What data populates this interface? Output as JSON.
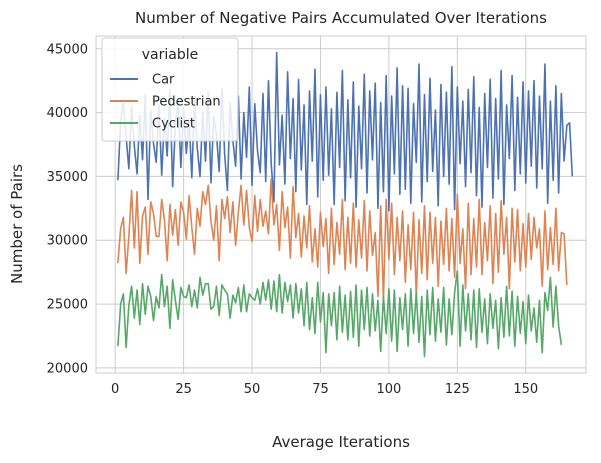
{
  "chart_data": {
    "type": "line",
    "title": "Number of Negative Pairs Accumulated Over Iterations",
    "xlabel": "Average Iterations",
    "ylabel": "Number of Pairs",
    "xlim": [
      -7,
      172
    ],
    "ylim": [
      19600,
      46000
    ],
    "xticks": [
      0,
      25,
      50,
      75,
      100,
      125,
      150
    ],
    "yticks": [
      20000,
      25000,
      30000,
      35000,
      40000,
      45000
    ],
    "grid": true,
    "legend": {
      "title": "variable",
      "placement": "top-left"
    },
    "series": [
      {
        "name": "Car",
        "color": "#4c72b0",
        "x_start": 1,
        "n": 165,
        "values": [
          34700,
          39300,
          40900,
          38100,
          35600,
          40500,
          37400,
          35200,
          39800,
          36300,
          41400,
          33200,
          40200,
          37600,
          36100,
          40600,
          35100,
          39600,
          36600,
          41800,
          34200,
          39100,
          41000,
          35700,
          40400,
          36800,
          39500,
          34900,
          41200,
          37200,
          35000,
          40100,
          36200,
          41600,
          34500,
          39700,
          38300,
          35400,
          41900,
          36700,
          33900,
          40800,
          37800,
          35800,
          41300,
          34800,
          40000,
          36500,
          42000,
          34300,
          40700,
          37000,
          35300,
          41500,
          34600,
          42500,
          36000,
          33000,
          44700,
          35900,
          39800,
          34400,
          43200,
          36400,
          41100,
          33800,
          42600,
          35500,
          40600,
          32800,
          41700,
          36200,
          43400,
          33400,
          41400,
          34700,
          42000,
          35100,
          40300,
          32800,
          41600,
          35700,
          43300,
          33100,
          41000,
          34900,
          42400,
          32600,
          40500,
          35600,
          43000,
          33700,
          41700,
          36300,
          42300,
          32500,
          40800,
          33800,
          42900,
          32300,
          41300,
          35200,
          43500,
          33600,
          42100,
          34000,
          41900,
          32900,
          40700,
          36100,
          43800,
          33000,
          41400,
          34600,
          42700,
          35400,
          40200,
          32700,
          42200,
          35000,
          41600,
          34400,
          43600,
          32400,
          42000,
          36000,
          40900,
          34200,
          41800,
          35300,
          42800,
          33500,
          40400,
          32600,
          41500,
          35700,
          42600,
          33300,
          41100,
          34800,
          43300,
          32800,
          40600,
          36400,
          42900,
          33900,
          41200,
          35200,
          42400,
          34500,
          41700,
          35800,
          42500,
          34100,
          41300,
          35600,
          43800,
          32900,
          40900,
          34700,
          42100,
          33700,
          41500,
          36200,
          39000,
          39200,
          35000
        ]
      },
      {
        "name": "Pedestrian",
        "color": "#dd8452",
        "x_start": 1,
        "n": 165,
        "values": [
          28200,
          30900,
          31800,
          27400,
          30300,
          33900,
          29400,
          33800,
          28200,
          31900,
          32600,
          28900,
          33000,
          32100,
          30300,
          30300,
          33200,
          31600,
          28400,
          32800,
          30400,
          32400,
          29600,
          33000,
          32200,
          30100,
          33500,
          31000,
          28900,
          32500,
          31100,
          33800,
          32800,
          34300,
          31500,
          30000,
          32700,
          28400,
          33200,
          31700,
          33400,
          30600,
          33000,
          29600,
          32200,
          34300,
          31200,
          33900,
          31000,
          29900,
          33500,
          30700,
          33200,
          31100,
          32300,
          30500,
          34800,
          31200,
          32800,
          29200,
          33800,
          31000,
          32600,
          28600,
          34200,
          30200,
          32100,
          28700,
          31900,
          29400,
          32700,
          28300,
          30900,
          27900,
          32200,
          29500,
          31700,
          27400,
          32500,
          28100,
          31400,
          28900,
          33200,
          27700,
          31800,
          28200,
          32900,
          27900,
          31600,
          28600,
          33100,
          27600,
          32300,
          28800,
          30600,
          25600,
          32700,
          25300,
          33200,
          28500,
          32900,
          27300,
          31800,
          28400,
          32300,
          26700,
          31200,
          27700,
          32200,
          25600,
          31600,
          27400,
          32700,
          26900,
          32200,
          28200,
          31800,
          26400,
          31500,
          28100,
          32500,
          27600,
          31700,
          27100,
          33600,
          28200,
          30900,
          26200,
          32900,
          27300,
          31700,
          27900,
          33200,
          27300,
          31400,
          28400,
          32700,
          26600,
          32100,
          27500,
          33100,
          28900,
          31800,
          26200,
          32500,
          28300,
          32400,
          27600,
          31300,
          27900,
          32100,
          28500,
          31800,
          29400,
          30900,
          26400,
          32300,
          27700,
          31000,
          28100,
          32500,
          27600,
          30600,
          30500,
          26500
        ]
      },
      {
        "name": "Cyclist",
        "color": "#55a868",
        "x_start": 1,
        "n": 165,
        "values": [
          21700,
          25000,
          25800,
          21600,
          24900,
          26400,
          23900,
          26100,
          23400,
          26600,
          24200,
          26400,
          25600,
          23700,
          25600,
          24700,
          27300,
          24800,
          26400,
          23100,
          26900,
          25300,
          23800,
          26300,
          25600,
          25500,
          26500,
          24800,
          26100,
          24700,
          27100,
          25700,
          26600,
          26600,
          24600,
          24800,
          26400,
          24100,
          26500,
          26100,
          25800,
          23900,
          25700,
          25100,
          26300,
          24400,
          26500,
          24400,
          25800,
          25500,
          25300,
          26200,
          25000,
          26700,
          25300,
          26900,
          24600,
          26800,
          24400,
          27300,
          24300,
          26700,
          25200,
          26500,
          23900,
          26600,
          24300,
          26200,
          23300,
          26700,
          23000,
          25500,
          22700,
          26700,
          23600,
          25900,
          21200,
          25800,
          23300,
          25900,
          22200,
          26400,
          22800,
          25700,
          22200,
          26000,
          22400,
          26500,
          21700,
          26100,
          23000,
          26300,
          22500,
          25800,
          22900,
          25300,
          21300,
          25600,
          22700,
          26200,
          22100,
          26100,
          21300,
          25500,
          23000,
          25800,
          21700,
          26200,
          22700,
          25900,
          22000,
          25600,
          20900,
          26100,
          22600,
          26300,
          22100,
          25400,
          22800,
          26300,
          21800,
          25400,
          22600,
          25900,
          27600,
          21700,
          26500,
          22900,
          25800,
          22200,
          26100,
          21600,
          26200,
          22800,
          25400,
          21900,
          25800,
          23100,
          25300,
          21500,
          25500,
          22400,
          26400,
          22500,
          26000,
          21700,
          25600,
          22700,
          25200,
          21900,
          25700,
          22900,
          24700,
          22000,
          25300,
          21200,
          25900,
          24500,
          27100,
          23200,
          26400,
          23300,
          21800
        ]
      }
    ]
  }
}
